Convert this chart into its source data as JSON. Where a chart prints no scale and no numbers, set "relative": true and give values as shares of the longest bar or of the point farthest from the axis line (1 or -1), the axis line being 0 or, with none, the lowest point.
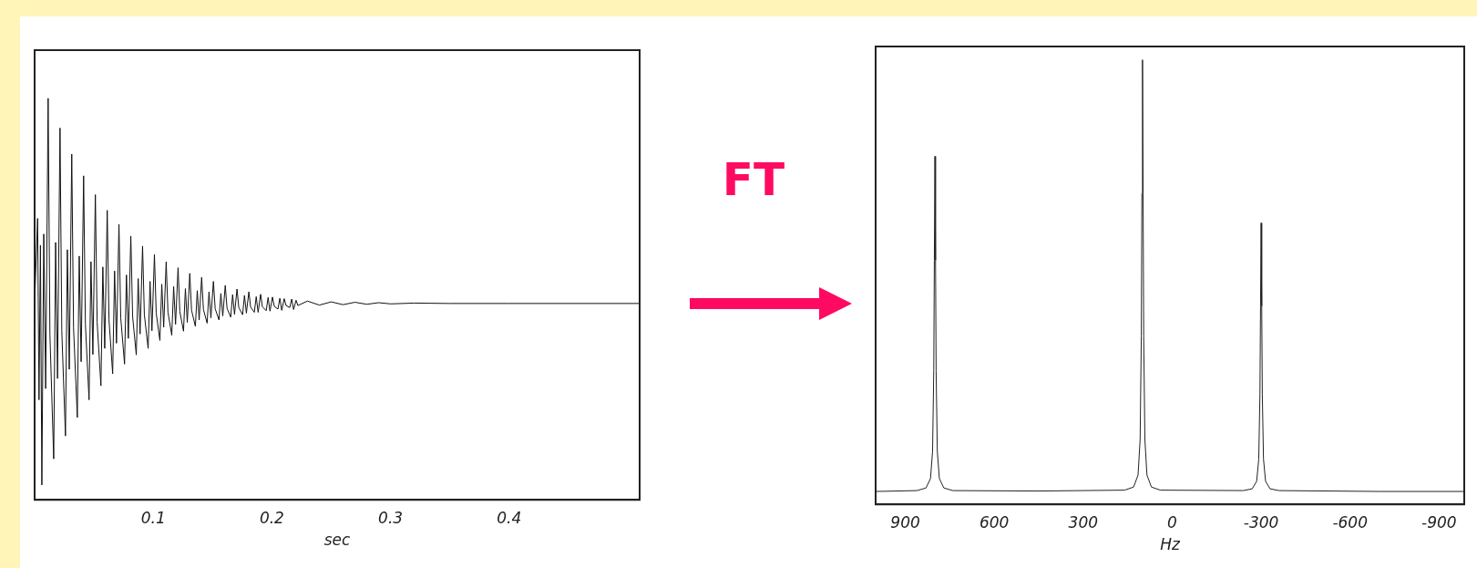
{
  "chart_data": [
    {
      "type": "line",
      "xlabel": "sec",
      "relative": true,
      "xlim": [
        0,
        0.51
      ],
      "xticks": [
        0.1,
        0.2,
        0.3,
        0.4
      ],
      "color": "#111111",
      "line_style": "solid",
      "marker": "none",
      "x": [
        0,
        0.0025,
        0.0037,
        0.0049,
        0.0061,
        0.0077,
        0.0093,
        0.0114,
        0.0129,
        0.0161,
        0.0177,
        0.0193,
        0.0214,
        0.0229,
        0.026,
        0.0276,
        0.0292,
        0.0313,
        0.0328,
        0.036,
        0.0376,
        0.0392,
        0.0413,
        0.0428,
        0.0459,
        0.0475,
        0.0491,
        0.0512,
        0.0527,
        0.0559,
        0.0575,
        0.0591,
        0.0612,
        0.0627,
        0.0658,
        0.0674,
        0.069,
        0.0711,
        0.0726,
        0.0758,
        0.0774,
        0.079,
        0.0811,
        0.0826,
        0.0857,
        0.0873,
        0.0889,
        0.091,
        0.0925,
        0.0957,
        0.0973,
        0.0989,
        0.101,
        0.1025,
        0.1056,
        0.1072,
        0.1088,
        0.1109,
        0.1124,
        0.1156,
        0.1172,
        0.1188,
        0.1209,
        0.1224,
        0.1255,
        0.1271,
        0.1287,
        0.1308,
        0.1323,
        0.1355,
        0.1371,
        0.1387,
        0.1408,
        0.1423,
        0.1454,
        0.147,
        0.1486,
        0.1507,
        0.1522,
        0.1554,
        0.157,
        0.1586,
        0.1607,
        0.1622,
        0.1653,
        0.1669,
        0.1685,
        0.1706,
        0.1721,
        0.1753,
        0.1769,
        0.1785,
        0.1806,
        0.1821,
        0.1852,
        0.1868,
        0.1884,
        0.1905,
        0.192,
        0.1952,
        0.1968,
        0.1984,
        0.2005,
        0.202,
        0.2051,
        0.2067,
        0.2083,
        0.2104,
        0.2119,
        0.2151,
        0.2167,
        0.2183,
        0.2204,
        0.2219,
        0.23,
        0.24,
        0.25,
        0.26,
        0.27,
        0.28,
        0.29,
        0.3,
        0.32,
        0.35,
        0.4,
        0.51
      ],
      "values": [
        0.489,
        0.701,
        0.249,
        0.634,
        0.037,
        0.662,
        0.277,
        1,
        0.412,
        0.102,
        0.641,
        0.302,
        0.926,
        0.421,
        0.159,
        0.623,
        0.325,
        0.861,
        0.429,
        0.205,
        0.607,
        0.344,
        0.807,
        0.437,
        0.249,
        0.593,
        0.362,
        0.76,
        0.442,
        0.284,
        0.58,
        0.377,
        0.721,
        0.448,
        0.314,
        0.57,
        0.39,
        0.686,
        0.453,
        0.338,
        0.56,
        0.402,
        0.657,
        0.457,
        0.361,
        0.551,
        0.413,
        0.632,
        0.461,
        0.377,
        0.544,
        0.421,
        0.611,
        0.465,
        0.397,
        0.537,
        0.43,
        0.593,
        0.467,
        0.41,
        0.531,
        0.437,
        0.578,
        0.469,
        0.42,
        0.526,
        0.442,
        0.564,
        0.472,
        0.432,
        0.521,
        0.448,
        0.554,
        0.474,
        0.44,
        0.518,
        0.453,
        0.544,
        0.476,
        0.448,
        0.514,
        0.458,
        0.534,
        0.477,
        0.455,
        0.511,
        0.462,
        0.525,
        0.479,
        0.461,
        0.509,
        0.465,
        0.518,
        0.48,
        0.467,
        0.506,
        0.467,
        0.512,
        0.481,
        0.471,
        0.504,
        0.47,
        0.505,
        0.482,
        0.475,
        0.502,
        0.472,
        0.501,
        0.484,
        0.479,
        0.5,
        0.474,
        0.497,
        0.484,
        0.495,
        0.485,
        0.493,
        0.486,
        0.492,
        0.487,
        0.491,
        0.488,
        0.49,
        0.489,
        0.489,
        0.489
      ]
    },
    {
      "type": "other",
      "title": "FT"
    },
    {
      "type": "line",
      "xlabel": "Hz",
      "relative": true,
      "xlim": [
        1000,
        -985
      ],
      "xticks": [
        900,
        600,
        300,
        0,
        -300,
        -600,
        -900
      ],
      "color": "#222222",
      "line_style": "solid",
      "marker": "none",
      "x": [
        1000,
        860,
        830,
        815,
        808,
        804,
        802,
        800,
        798,
        796,
        792,
        785,
        770,
        740,
        450,
        160,
        130,
        115,
        108,
        104,
        102,
        100,
        98,
        96,
        92,
        85,
        70,
        40,
        -240,
        -270,
        -285,
        -292,
        -296,
        -298,
        -300,
        -302,
        -304,
        -308,
        -315,
        -330,
        -360,
        -700,
        -985
      ],
      "values": [
        0.029,
        0.031,
        0.037,
        0.058,
        0.119,
        0.301,
        0.549,
        0.783,
        0.549,
        0.301,
        0.119,
        0.058,
        0.037,
        0.031,
        0.03,
        0.032,
        0.039,
        0.066,
        0.146,
        0.379,
        0.699,
        1,
        0.699,
        0.379,
        0.146,
        0.066,
        0.039,
        0.032,
        0.031,
        0.035,
        0.052,
        0.102,
        0.247,
        0.446,
        0.633,
        0.446,
        0.247,
        0.102,
        0.052,
        0.035,
        0.031,
        0.029,
        0.029
      ]
    }
  ]
}
